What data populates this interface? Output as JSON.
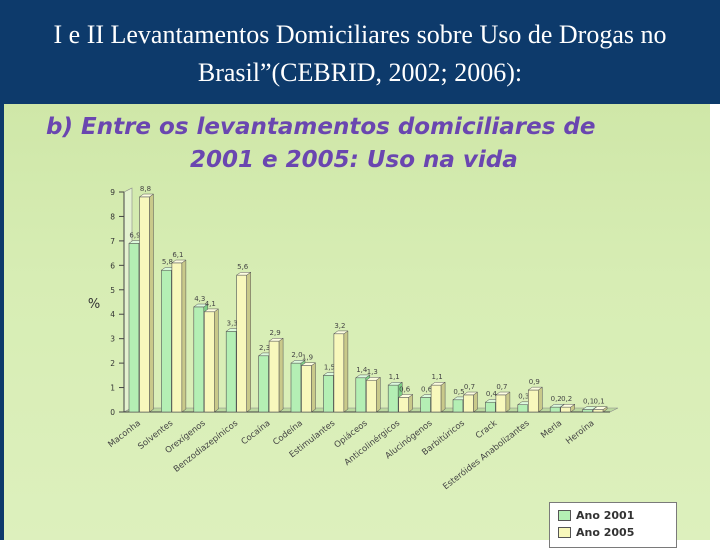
{
  "header": {
    "title": "I e II Levantamentos Domiciliares sobre Uso de Drogas no Brasil”(CEBRID, 2002; 2006):"
  },
  "subtitle": {
    "line1": "b) Entre os levantamentos domiciliares de",
    "line2": "2001 e 2005: Uso na vida"
  },
  "colors": {
    "header_bg": "#0d3a6b",
    "panel_bg": "#d7edb4",
    "subtitle": "#6a46b0",
    "series_2001": "#b4efb4",
    "series_2005": "#f8f8bc"
  },
  "chart_data": {
    "type": "bar",
    "ylabel": "%",
    "ylim": [
      0,
      9
    ],
    "yticks": [
      "0",
      "1",
      "2",
      "3",
      "4",
      "5",
      "6",
      "7",
      "8",
      "9"
    ],
    "categories": [
      "Maconha",
      "Solventes",
      "Orexígenos",
      "Benzodiazepínicos",
      "Cocaína",
      "Codeína",
      "Estimulantes",
      "Opiáceos",
      "Anticolinérgicos",
      "Alucinógenos",
      "Barbitúricos",
      "Crack",
      "Esteróides Anabolizantes",
      "Merla",
      "Heroína"
    ],
    "series": [
      {
        "name": "Ano 2001",
        "values": [
          6.9,
          5.8,
          4.3,
          3.3,
          2.3,
          2.0,
          1.5,
          1.4,
          1.1,
          0.6,
          0.5,
          0.4,
          0.3,
          0.2,
          0.1
        ],
        "labels": [
          "6,9",
          "5,8",
          "4,3",
          "3,3",
          "2,3",
          "2,0",
          "1,5",
          "1,4",
          "1,1",
          "0,6",
          "0,5",
          "0,4",
          "0,3",
          "0,2",
          "0,1"
        ]
      },
      {
        "name": "Ano 2005",
        "values": [
          8.8,
          6.1,
          4.1,
          5.6,
          2.9,
          1.9,
          3.2,
          1.3,
          0.6,
          1.1,
          0.7,
          0.7,
          0.9,
          0.2,
          0.1
        ],
        "labels": [
          "8,8",
          "6,1",
          "4,1",
          "5,6",
          "2,9",
          "1,9",
          "3,2",
          "1,3",
          "0,6",
          "1,1",
          "0,7",
          "0,7",
          "0,9",
          "0,2",
          "0,1"
        ]
      }
    ],
    "legend": {
      "position": "bottom-right"
    }
  }
}
